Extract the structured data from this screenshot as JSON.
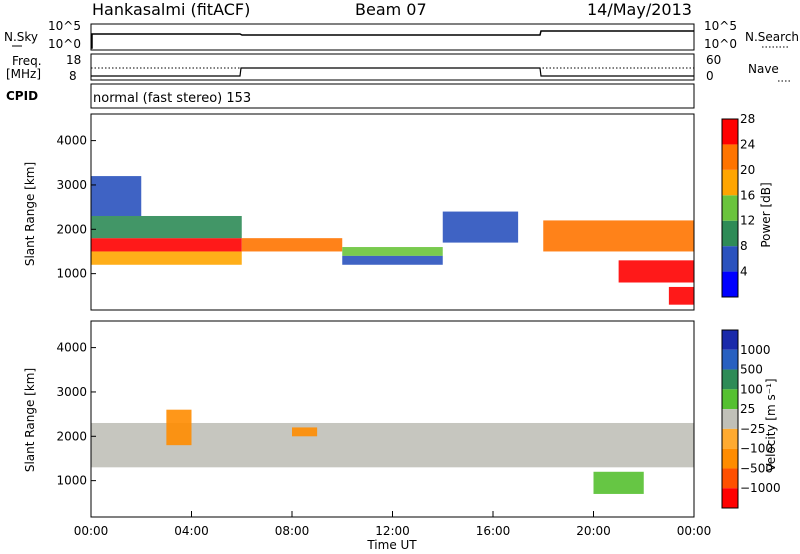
{
  "header": {
    "station": "Hankasalmi (fitACF)",
    "beam": "Beam 07",
    "date": "14/May/2013"
  },
  "summary_panels": {
    "nsky_label": "N.Sky",
    "nsearch_label": "N.Search",
    "nsky_ticks": [
      "10^5",
      "10^0"
    ],
    "nsearch_ticks": [
      "10^5",
      "10^0"
    ],
    "freq_label_line1": "Freq.",
    "freq_label_line2": "[MHz]",
    "freq_ticks": [
      "18",
      "8"
    ],
    "nave_label": "Nave",
    "nave_ticks": [
      "60",
      "0"
    ],
    "cpid_label": "CPID",
    "mode_text": "normal (fast stereo) 153"
  },
  "colors": {
    "power_scale": [
      "#0000ff",
      "#2a52be",
      "#2e8b57",
      "#6ac43c",
      "#ffa500",
      "#ff7400",
      "#ff0000"
    ],
    "velocity_scale": [
      "#1a2aaa",
      "#2860c0",
      "#2e8b57",
      "#55c030",
      "#c0c0b8",
      "#ffaa30",
      "#ff8c00",
      "#ff5000",
      "#ff0000"
    ]
  },
  "chart_data": [
    {
      "type": "heatmap",
      "name_role": "power",
      "ylabel": "Slant Range [km]",
      "yticks": [
        1000,
        2000,
        3000,
        4000
      ],
      "ylim": [
        180,
        4600
      ],
      "colorbar_label": "Power [dB]",
      "colorbar_ticks": [
        4,
        8,
        12,
        16,
        20,
        24,
        28
      ],
      "bands": [
        {
          "range_km": [
            1500,
            1800
          ],
          "hours": [
            0,
            6
          ],
          "level": "28"
        },
        {
          "range_km": [
            1200,
            1500
          ],
          "hours": [
            0,
            6
          ],
          "level": "20"
        },
        {
          "range_km": [
            1800,
            2300
          ],
          "hours": [
            0,
            6
          ],
          "level": "12"
        },
        {
          "range_km": [
            2300,
            3200
          ],
          "hours": [
            0,
            2
          ],
          "level": "8"
        },
        {
          "range_km": [
            1500,
            1800
          ],
          "hours": [
            6,
            10
          ],
          "level": "24"
        },
        {
          "range_km": [
            1400,
            1600
          ],
          "hours": [
            10,
            14
          ],
          "level": "16"
        },
        {
          "range_km": [
            1200,
            1400
          ],
          "hours": [
            10,
            14
          ],
          "level": "8"
        },
        {
          "range_km": [
            1700,
            2400
          ],
          "hours": [
            14,
            17
          ],
          "level": "8"
        },
        {
          "range_km": [
            1500,
            2200
          ],
          "hours": [
            18,
            24
          ],
          "level": "24"
        },
        {
          "range_km": [
            800,
            1300
          ],
          "hours": [
            21,
            24
          ],
          "level": "28"
        },
        {
          "range_km": [
            300,
            700
          ],
          "hours": [
            23,
            24
          ],
          "level": "28"
        }
      ]
    },
    {
      "type": "heatmap",
      "name_role": "velocity",
      "ylabel": "Slant Range [km]",
      "yticks": [
        1000,
        2000,
        3000,
        4000
      ],
      "ylim": [
        180,
        4600
      ],
      "xlabel": "Time UT",
      "xticks": [
        "00:00",
        "04:00",
        "08:00",
        "12:00",
        "16:00",
        "20:00",
        "00:00"
      ],
      "xlim_hours": [
        0,
        24
      ],
      "colorbar_label": "Velocity [m s⁻¹]",
      "colorbar_ticks": [
        "1000",
        "500",
        "100",
        "25",
        "−25",
        "−100",
        "−500",
        "−1000"
      ],
      "bands": [
        {
          "range_km": [
            1300,
            2300
          ],
          "hours": [
            0,
            24
          ],
          "level": "ground"
        },
        {
          "range_km": [
            1800,
            2600
          ],
          "hours": [
            3,
            4
          ],
          "level": "-100"
        },
        {
          "range_km": [
            2000,
            2200
          ],
          "hours": [
            8,
            9
          ],
          "level": "-100"
        },
        {
          "range_km": [
            700,
            1200
          ],
          "hours": [
            20,
            22
          ],
          "level": "100"
        }
      ]
    }
  ]
}
